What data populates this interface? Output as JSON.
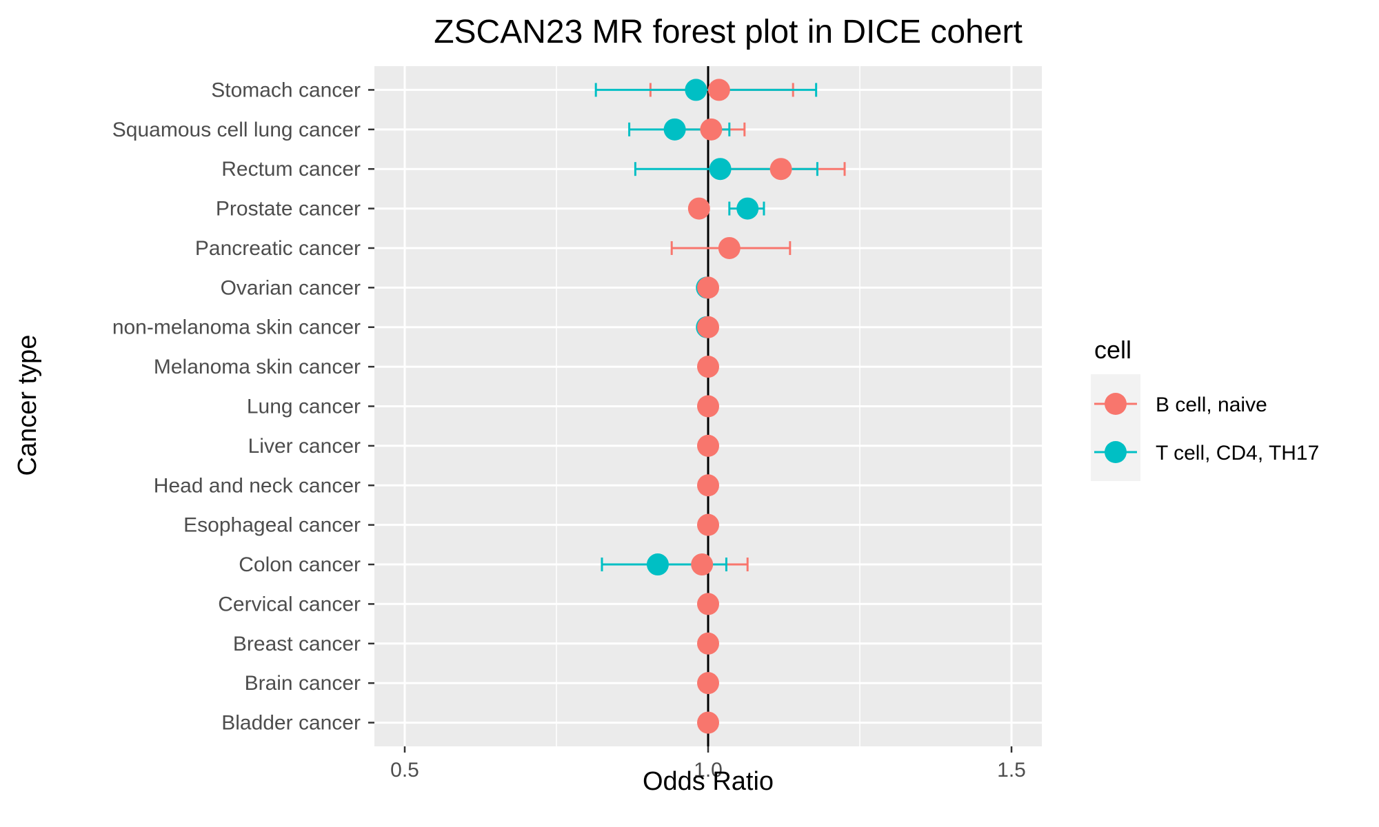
{
  "chart_data": {
    "type": "scatter",
    "title": "ZSCAN23 MR forest plot in DICE cohert",
    "xlabel": "Odds Ratio",
    "ylabel": "Cancer type",
    "xlim": [
      0.45,
      1.55
    ],
    "xticks": [
      "0.5",
      "1.0",
      "1.5"
    ],
    "xtick_values": [
      0.5,
      1.0,
      1.5
    ],
    "x_minor_gridlines": [
      0.75,
      1.25
    ],
    "reference_line": 1.0,
    "grid": true,
    "legend_position": "right",
    "legend_title": "cell",
    "categories": [
      "Stomach cancer",
      "Squamous cell lung cancer",
      "Rectum cancer",
      "Prostate cancer",
      "Pancreatic cancer",
      "Ovarian cancer",
      "non-melanoma skin cancer",
      "Melanoma skin cancer",
      "Lung cancer",
      "Liver cancer",
      "Head and neck cancer",
      "Esophageal cancer",
      "Colon cancer",
      "Cervical cancer",
      "Breast cancer",
      "Brain cancer",
      "Bladder cancer"
    ],
    "series": [
      {
        "name": "B cell, naive",
        "color": "#F8766D",
        "points": [
          {
            "category": "Stomach cancer",
            "or": 1.018,
            "lo": 0.905,
            "hi": 1.14
          },
          {
            "category": "Squamous cell lung cancer",
            "or": 1.005,
            "lo": 0.955,
            "hi": 1.06
          },
          {
            "category": "Rectum cancer",
            "or": 1.12,
            "lo": 1.02,
            "hi": 1.225
          },
          {
            "category": "Prostate cancer",
            "or": 0.985,
            "lo": 0.985,
            "hi": 0.985
          },
          {
            "category": "Pancreatic cancer",
            "or": 1.035,
            "lo": 0.94,
            "hi": 1.135
          },
          {
            "category": "Ovarian cancer",
            "or": 1.0,
            "lo": 1.0,
            "hi": 1.0
          },
          {
            "category": "non-melanoma skin cancer",
            "or": 1.0,
            "lo": 1.0,
            "hi": 1.0
          },
          {
            "category": "Melanoma skin cancer",
            "or": 1.0,
            "lo": 1.0,
            "hi": 1.0
          },
          {
            "category": "Lung cancer",
            "or": 1.0,
            "lo": 1.0,
            "hi": 1.0
          },
          {
            "category": "Liver cancer",
            "or": 1.0,
            "lo": 1.0,
            "hi": 1.0
          },
          {
            "category": "Head and neck cancer",
            "or": 1.0,
            "lo": 1.0,
            "hi": 1.0
          },
          {
            "category": "Esophageal cancer",
            "or": 1.0,
            "lo": 1.0,
            "hi": 1.0
          },
          {
            "category": "Colon cancer",
            "or": 0.99,
            "lo": 0.92,
            "hi": 1.065
          },
          {
            "category": "Cervical cancer",
            "or": 1.0,
            "lo": 1.0,
            "hi": 1.0
          },
          {
            "category": "Breast cancer",
            "or": 1.0,
            "lo": 1.0,
            "hi": 1.0
          },
          {
            "category": "Brain cancer",
            "or": 1.0,
            "lo": 1.0,
            "hi": 1.0
          },
          {
            "category": "Bladder cancer",
            "or": 1.0,
            "lo": 1.0,
            "hi": 1.0
          }
        ]
      },
      {
        "name": "T cell, CD4, TH17",
        "color": "#00BFC4",
        "points": [
          {
            "category": "Stomach cancer",
            "or": 0.98,
            "lo": 0.815,
            "hi": 1.178
          },
          {
            "category": "Squamous cell lung cancer",
            "or": 0.945,
            "lo": 0.87,
            "hi": 1.035
          },
          {
            "category": "Rectum cancer",
            "or": 1.02,
            "lo": 0.88,
            "hi": 1.18
          },
          {
            "category": "Prostate cancer",
            "or": 1.065,
            "lo": 1.035,
            "hi": 1.092
          },
          {
            "category": "Pancreatic cancer",
            "or": null,
            "lo": null,
            "hi": null
          },
          {
            "category": "Ovarian cancer",
            "or": 0.998,
            "lo": 0.998,
            "hi": 0.998
          },
          {
            "category": "non-melanoma skin cancer",
            "or": 0.998,
            "lo": 0.998,
            "hi": 0.998
          },
          {
            "category": "Melanoma skin cancer",
            "or": null,
            "lo": null,
            "hi": null
          },
          {
            "category": "Lung cancer",
            "or": null,
            "lo": null,
            "hi": null
          },
          {
            "category": "Liver cancer",
            "or": null,
            "lo": null,
            "hi": null
          },
          {
            "category": "Head and neck cancer",
            "or": null,
            "lo": null,
            "hi": null
          },
          {
            "category": "Esophageal cancer",
            "or": null,
            "lo": null,
            "hi": null
          },
          {
            "category": "Colon cancer",
            "or": 0.917,
            "lo": 0.825,
            "hi": 1.03
          },
          {
            "category": "Cervical cancer",
            "or": null,
            "lo": null,
            "hi": null
          },
          {
            "category": "Breast cancer",
            "or": null,
            "lo": null,
            "hi": null
          },
          {
            "category": "Brain cancer",
            "or": null,
            "lo": null,
            "hi": null
          },
          {
            "category": "Bladder cancer",
            "or": null,
            "lo": null,
            "hi": null
          }
        ]
      }
    ]
  }
}
